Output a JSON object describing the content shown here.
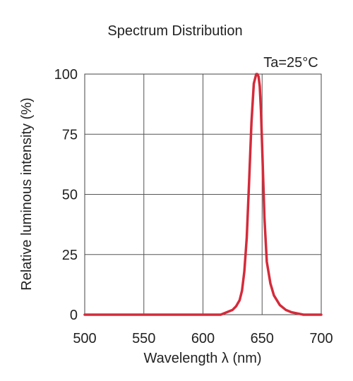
{
  "chart_data": {
    "type": "line",
    "title": "Spectrum Distribution",
    "annotation": "Ta=25°C",
    "xlabel": "Wavelength  λ (nm)",
    "ylabel": "Relative luminous intensity (%)",
    "xlim": [
      500,
      700
    ],
    "ylim": [
      0,
      100
    ],
    "xticks": [
      500,
      550,
      600,
      650,
      700
    ],
    "yticks": [
      0,
      25,
      50,
      75,
      100
    ],
    "grid": true,
    "series": [
      {
        "color": "#d42b3a",
        "x": [
          500,
          600,
          615,
          620,
          625,
          628,
          631,
          633,
          635,
          637,
          639,
          641,
          643,
          645,
          646,
          647,
          648,
          649,
          650,
          652,
          654,
          657,
          660,
          665,
          670,
          675,
          680,
          685,
          700
        ],
        "y": [
          0,
          0,
          0,
          1,
          2,
          3.5,
          6,
          10,
          18,
          32,
          55,
          80,
          96,
          100,
          100,
          99,
          95,
          85,
          70,
          40,
          22,
          13,
          8,
          4,
          2,
          1,
          0.5,
          0,
          0
        ]
      }
    ]
  }
}
